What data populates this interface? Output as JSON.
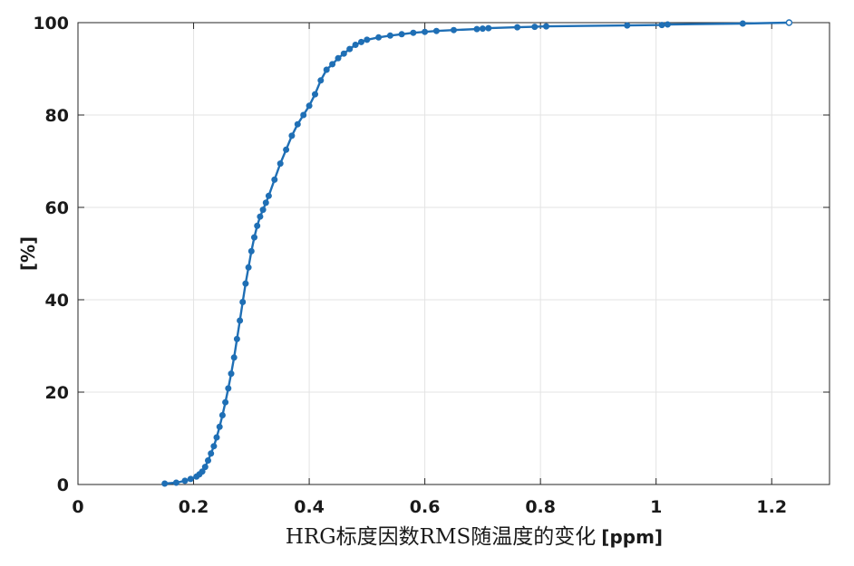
{
  "chart_data": {
    "type": "line",
    "title": "",
    "xlabel_main": "HRG标度因数RMS随温度的变化",
    "xlabel_unit": "[ppm]",
    "ylabel": "[%]",
    "xlim": [
      0,
      1.3
    ],
    "ylim": [
      0,
      100
    ],
    "xticks": [
      0,
      0.2,
      0.4,
      0.6,
      0.8,
      1,
      1.2
    ],
    "xtick_labels": [
      "0",
      "0.2",
      "0.4",
      "0.6",
      "0.8",
      "1",
      "1.2"
    ],
    "yticks": [
      0,
      20,
      40,
      60,
      80,
      100
    ],
    "ytick_labels": [
      "0",
      "20",
      "40",
      "60",
      "80",
      "100"
    ],
    "grid": true,
    "series": [
      {
        "color": "#1f6fb5",
        "marker": "dot",
        "x": [
          0.15,
          0.17,
          0.185,
          0.195,
          0.205,
          0.21,
          0.215,
          0.22,
          0.225,
          0.23,
          0.235,
          0.24,
          0.245,
          0.25,
          0.255,
          0.26,
          0.265,
          0.27,
          0.275,
          0.28,
          0.285,
          0.29,
          0.295,
          0.3,
          0.305,
          0.31,
          0.315,
          0.32,
          0.325,
          0.33,
          0.34,
          0.35,
          0.36,
          0.37,
          0.38,
          0.39,
          0.4,
          0.41,
          0.42,
          0.43,
          0.44,
          0.45,
          0.46,
          0.47,
          0.48,
          0.49,
          0.5,
          0.52,
          0.54,
          0.56,
          0.58,
          0.6,
          0.62,
          0.65,
          0.69,
          0.7,
          0.71,
          0.76,
          0.79,
          0.81,
          0.95,
          1.01,
          1.02,
          1.15,
          1.23
        ],
        "y": [
          0.2,
          0.4,
          0.8,
          1.2,
          1.7,
          2.2,
          2.8,
          3.8,
          5.2,
          6.7,
          8.3,
          10.2,
          12.5,
          15.0,
          17.8,
          20.8,
          24.0,
          27.5,
          31.5,
          35.5,
          39.5,
          43.5,
          47.0,
          50.5,
          53.5,
          56.0,
          58.0,
          59.5,
          61.0,
          62.5,
          66.0,
          69.5,
          72.5,
          75.5,
          78.0,
          80.0,
          82.0,
          84.5,
          87.5,
          89.8,
          91.0,
          92.3,
          93.3,
          94.3,
          95.2,
          95.8,
          96.3,
          96.8,
          97.2,
          97.5,
          97.8,
          98.0,
          98.2,
          98.4,
          98.6,
          98.7,
          98.8,
          99.0,
          99.1,
          99.2,
          99.4,
          99.5,
          99.6,
          99.8,
          100.0
        ]
      }
    ]
  }
}
